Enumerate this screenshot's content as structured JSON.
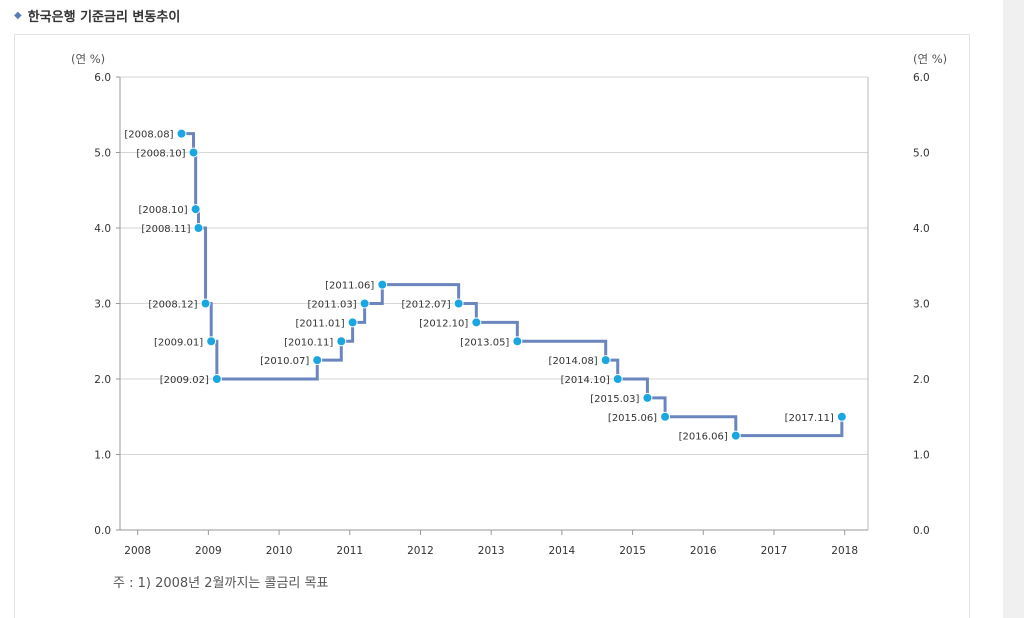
{
  "page": {
    "title_icon": "diamond-icon",
    "title": "한국은행 기준금리 변동추이"
  },
  "chart_data": {
    "type": "line",
    "step": true,
    "title": "한국은행 기준금리 변동추이",
    "y_unit_left": "(연 %)",
    "y_unit_right": "(연 %)",
    "ylim": [
      0,
      6
    ],
    "y_ticks": [
      "0.0",
      "1.0",
      "2.0",
      "3.0",
      "4.0",
      "5.0",
      "6.0"
    ],
    "xlim": [
      2007.75,
      2018.33
    ],
    "x_ticks": [
      "2008",
      "2009",
      "2010",
      "2011",
      "2012",
      "2013",
      "2014",
      "2015",
      "2016",
      "2017",
      "2018"
    ],
    "series": [
      {
        "name": "기준금리",
        "color": "#6b86bf",
        "marker_color": "#1aa6e0",
        "points": [
          {
            "x": 2008.62,
            "y": 5.25,
            "label": "[2008.08]"
          },
          {
            "x": 2008.79,
            "y": 5.0,
            "label": "[2008.10]"
          },
          {
            "x": 2008.82,
            "y": 4.25,
            "label": "[2008.10]"
          },
          {
            "x": 2008.86,
            "y": 4.0,
            "label": "[2008.11]"
          },
          {
            "x": 2008.96,
            "y": 3.0,
            "label": "[2008.12]"
          },
          {
            "x": 2009.04,
            "y": 2.5,
            "label": "[2009.01]"
          },
          {
            "x": 2009.12,
            "y": 2.0,
            "label": "[2009.02]"
          },
          {
            "x": 2010.54,
            "y": 2.25,
            "label": "[2010.07]"
          },
          {
            "x": 2010.88,
            "y": 2.5,
            "label": "[2010.11]"
          },
          {
            "x": 2011.04,
            "y": 2.75,
            "label": "[2011.01]"
          },
          {
            "x": 2011.21,
            "y": 3.0,
            "label": "[2011.03]"
          },
          {
            "x": 2011.46,
            "y": 3.25,
            "label": "[2011.06]"
          },
          {
            "x": 2012.54,
            "y": 3.0,
            "label": "[2012.07]"
          },
          {
            "x": 2012.79,
            "y": 2.75,
            "label": "[2012.10]"
          },
          {
            "x": 2013.37,
            "y": 2.5,
            "label": "[2013.05]"
          },
          {
            "x": 2014.62,
            "y": 2.25,
            "label": "[2014.08]"
          },
          {
            "x": 2014.79,
            "y": 2.0,
            "label": "[2014.10]"
          },
          {
            "x": 2015.21,
            "y": 1.75,
            "label": "[2015.03]"
          },
          {
            "x": 2015.46,
            "y": 1.5,
            "label": "[2015.06]"
          },
          {
            "x": 2016.46,
            "y": 1.25,
            "label": "[2016.06]"
          },
          {
            "x": 2017.96,
            "y": 1.5,
            "label": "[2017.11]"
          }
        ]
      }
    ],
    "footnote": "주 : 1) 2008년 2월까지는 콜금리 목표"
  }
}
